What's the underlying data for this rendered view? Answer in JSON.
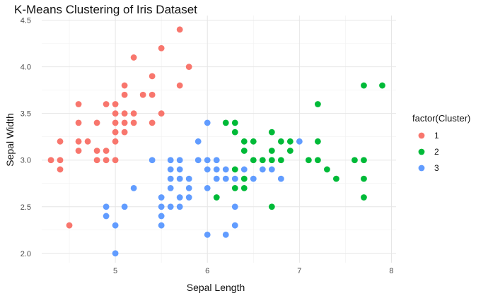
{
  "chart_data": {
    "type": "scatter",
    "title": "K-Means Clustering of Iris Dataset",
    "xlabel": "Sepal Length",
    "ylabel": "Sepal Width",
    "xlim": [
      4.2,
      8.05
    ],
    "ylim": [
      1.9,
      4.55
    ],
    "xticks": [
      5,
      6,
      7,
      8
    ],
    "yticks": [
      2.0,
      2.5,
      3.0,
      3.5,
      4.0,
      4.5
    ],
    "ytick_labels": [
      "2.0",
      "2.5",
      "3.0",
      "3.5",
      "4.0",
      "4.5"
    ],
    "grid": true,
    "legend": {
      "title": "factor(Cluster)",
      "position": "right"
    },
    "series": [
      {
        "name": "1",
        "color": "#f8766d",
        "points": [
          [
            4.3,
            3.0
          ],
          [
            4.4,
            3.2
          ],
          [
            4.4,
            3.0
          ],
          [
            4.4,
            2.9
          ],
          [
            4.5,
            2.3
          ],
          [
            4.6,
            3.6
          ],
          [
            4.6,
            3.4
          ],
          [
            4.6,
            3.2
          ],
          [
            4.6,
            3.1
          ],
          [
            4.7,
            3.2
          ],
          [
            4.8,
            3.4
          ],
          [
            4.8,
            3.1
          ],
          [
            4.8,
            3.0
          ],
          [
            4.9,
            3.6
          ],
          [
            4.9,
            3.1
          ],
          [
            4.9,
            3.0
          ],
          [
            5.0,
            3.6
          ],
          [
            5.0,
            3.5
          ],
          [
            5.0,
            3.4
          ],
          [
            5.0,
            3.3
          ],
          [
            5.0,
            3.2
          ],
          [
            5.0,
            3.0
          ],
          [
            5.1,
            3.8
          ],
          [
            5.1,
            3.7
          ],
          [
            5.1,
            3.5
          ],
          [
            5.1,
            3.4
          ],
          [
            5.1,
            3.3
          ],
          [
            5.2,
            4.1
          ],
          [
            5.2,
            3.5
          ],
          [
            5.2,
            3.4
          ],
          [
            5.3,
            3.7
          ],
          [
            5.4,
            3.9
          ],
          [
            5.4,
            3.7
          ],
          [
            5.4,
            3.4
          ],
          [
            5.5,
            4.2
          ],
          [
            5.5,
            3.5
          ],
          [
            5.7,
            4.4
          ],
          [
            5.7,
            3.8
          ],
          [
            5.8,
            4.0
          ]
        ]
      },
      {
        "name": "2",
        "color": "#00ba38",
        "points": [
          [
            6.1,
            2.6
          ],
          [
            6.2,
            3.4
          ],
          [
            6.3,
            3.4
          ],
          [
            6.3,
            3.3
          ],
          [
            6.3,
            2.9
          ],
          [
            6.3,
            2.7
          ],
          [
            6.4,
            3.2
          ],
          [
            6.4,
            3.1
          ],
          [
            6.4,
            2.8
          ],
          [
            6.4,
            2.7
          ],
          [
            6.5,
            3.2
          ],
          [
            6.5,
            3.0
          ],
          [
            6.6,
            3.0
          ],
          [
            6.7,
            3.3
          ],
          [
            6.7,
            3.1
          ],
          [
            6.7,
            3.0
          ],
          [
            6.7,
            2.5
          ],
          [
            6.8,
            3.2
          ],
          [
            6.8,
            3.0
          ],
          [
            6.9,
            3.2
          ],
          [
            6.9,
            3.1
          ],
          [
            7.1,
            3.0
          ],
          [
            7.2,
            3.6
          ],
          [
            7.2,
            3.2
          ],
          [
            7.2,
            3.0
          ],
          [
            7.3,
            2.9
          ],
          [
            7.4,
            2.8
          ],
          [
            7.6,
            3.0
          ],
          [
            7.7,
            3.8
          ],
          [
            7.7,
            3.0
          ],
          [
            7.7,
            2.8
          ],
          [
            7.7,
            2.6
          ],
          [
            7.9,
            3.8
          ]
        ]
      },
      {
        "name": "3",
        "color": "#619cff",
        "points": [
          [
            4.9,
            2.5
          ],
          [
            4.9,
            2.4
          ],
          [
            5.0,
            2.3
          ],
          [
            5.0,
            2.0
          ],
          [
            5.1,
            2.5
          ],
          [
            5.2,
            2.7
          ],
          [
            5.4,
            3.0
          ],
          [
            5.5,
            2.6
          ],
          [
            5.5,
            2.5
          ],
          [
            5.5,
            2.4
          ],
          [
            5.5,
            2.3
          ],
          [
            5.6,
            3.0
          ],
          [
            5.6,
            2.9
          ],
          [
            5.6,
            2.8
          ],
          [
            5.6,
            2.7
          ],
          [
            5.6,
            2.5
          ],
          [
            5.7,
            3.0
          ],
          [
            5.7,
            2.9
          ],
          [
            5.7,
            2.8
          ],
          [
            5.7,
            2.6
          ],
          [
            5.7,
            2.5
          ],
          [
            5.8,
            2.8
          ],
          [
            5.8,
            2.7
          ],
          [
            5.8,
            2.6
          ],
          [
            5.9,
            3.2
          ],
          [
            5.9,
            3.0
          ],
          [
            6.0,
            3.4
          ],
          [
            6.0,
            3.0
          ],
          [
            6.0,
            2.9
          ],
          [
            6.0,
            2.7
          ],
          [
            6.0,
            2.2
          ],
          [
            6.1,
            3.0
          ],
          [
            6.1,
            2.9
          ],
          [
            6.1,
            2.8
          ],
          [
            6.2,
            2.9
          ],
          [
            6.2,
            2.8
          ],
          [
            6.2,
            2.2
          ],
          [
            6.3,
            2.8
          ],
          [
            6.3,
            2.5
          ],
          [
            6.3,
            2.3
          ],
          [
            6.4,
            2.9
          ],
          [
            6.5,
            2.8
          ],
          [
            6.6,
            2.9
          ],
          [
            6.7,
            2.9
          ],
          [
            6.8,
            2.8
          ],
          [
            7.0,
            3.2
          ]
        ]
      }
    ]
  }
}
